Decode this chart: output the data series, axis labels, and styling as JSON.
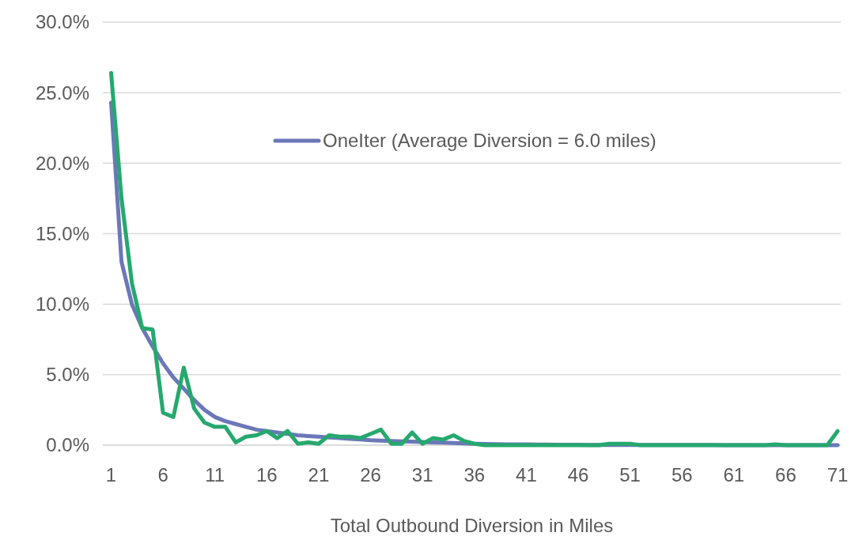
{
  "chart_data": {
    "type": "line",
    "xlabel": "Total Outbound Diversion in Miles",
    "x": [
      1,
      2,
      3,
      4,
      5,
      6,
      7,
      8,
      9,
      10,
      11,
      12,
      13,
      14,
      15,
      16,
      17,
      18,
      19,
      20,
      21,
      22,
      23,
      24,
      25,
      26,
      27,
      28,
      29,
      30,
      31,
      32,
      33,
      34,
      35,
      36,
      37,
      38,
      39,
      40,
      41,
      42,
      43,
      44,
      45,
      46,
      47,
      48,
      49,
      50,
      51,
      52,
      53,
      54,
      55,
      56,
      57,
      58,
      59,
      60,
      61,
      62,
      63,
      64,
      65,
      66,
      67,
      68,
      69,
      70,
      71
    ],
    "series": [
      {
        "name": "OneIter (Average Diversion = 6.0 miles)",
        "color": "#6b78b8",
        "values": [
          24.3,
          13,
          10,
          8.3,
          7,
          5.8,
          4.8,
          4,
          3.2,
          2.5,
          2,
          1.7,
          1.5,
          1.3,
          1.1,
          1,
          0.9,
          0.8,
          0.7,
          0.65,
          0.6,
          0.55,
          0.5,
          0.45,
          0.4,
          0.35,
          0.32,
          0.3,
          0.27,
          0.25,
          0.22,
          0.2,
          0.18,
          0.15,
          0.12,
          0.1,
          0.08,
          0.07,
          0.06,
          0.05,
          0.05,
          0.04,
          0.04,
          0.03,
          0.03,
          0.03,
          0.02,
          0.02,
          0.02,
          0.02,
          0.02,
          0.01,
          0.01,
          0.01,
          0.01,
          0.01,
          0.01,
          0.01,
          0.01,
          0,
          0,
          0,
          0,
          0,
          0,
          0,
          0,
          0,
          0,
          0,
          0
        ]
      },
      {
        "color": "#26a86e",
        "values": [
          26.4,
          17.5,
          11.5,
          8.3,
          8.2,
          2.3,
          2,
          5.5,
          2.6,
          1.6,
          1.3,
          1.3,
          0.2,
          0.6,
          0.7,
          1,
          0.5,
          1,
          0.1,
          0.2,
          0.1,
          0.7,
          0.6,
          0.6,
          0.5,
          0.8,
          1.1,
          0.1,
          0.1,
          0.9,
          0.1,
          0.5,
          0.4,
          0.7,
          0.3,
          0.1,
          0,
          0,
          0,
          0,
          0,
          0,
          0,
          0,
          0,
          0,
          0,
          0,
          0.1,
          0.1,
          0.1,
          0,
          0,
          0,
          0,
          0,
          0,
          0,
          0,
          0,
          0,
          0,
          0,
          0,
          0.05,
          0,
          0,
          0,
          0,
          0,
          1
        ]
      }
    ],
    "xlim": [
      0.2,
      71.3
    ],
    "xticks": [
      1,
      6,
      11,
      16,
      21,
      26,
      31,
      36,
      41,
      46,
      51,
      56,
      61,
      66,
      71
    ],
    "ylim": [
      0,
      30
    ],
    "yticks": [
      {
        "value": 0,
        "label": "0.0%"
      },
      {
        "value": 5,
        "label": "5.0%"
      },
      {
        "value": 10,
        "label": "10.0%"
      },
      {
        "value": 15,
        "label": "15.0%"
      },
      {
        "value": 20,
        "label": "20.0%"
      },
      {
        "value": 25,
        "label": "25.0%"
      },
      {
        "value": 30,
        "label": "30.0%"
      }
    ],
    "grid": "y",
    "legend": "top right",
    "marker": "none",
    "line_style": "solid"
  }
}
